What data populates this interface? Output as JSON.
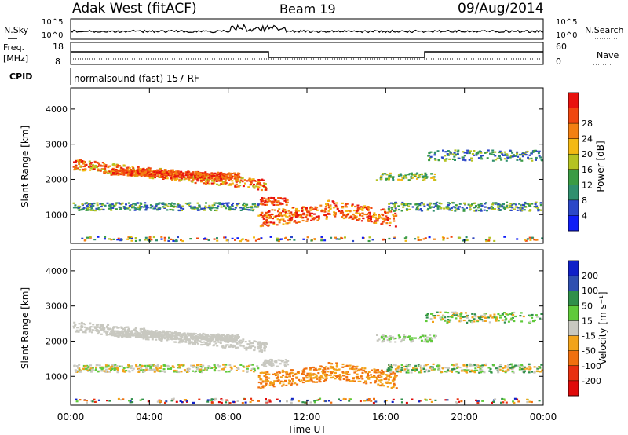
{
  "header": {
    "station": "Adak West (fitACF)",
    "beam": "Beam 19",
    "date": "09/Aug/2014"
  },
  "strip_labels": {
    "nsky": "N.Sky",
    "nsearch": "N.Search",
    "freq_line1": "Freq.",
    "freq_line2": "[MHz]",
    "nave": "Nave",
    "cpid": "CPID",
    "cpid_value": "normalsound (fast) 157 RF",
    "noise_left_top": "10^5",
    "noise_left_bottom": "10^0",
    "noise_right_top": "10^5",
    "noise_right_bottom": "10^0",
    "freq_top": "18",
    "freq_bottom": "8",
    "nave_top": "60",
    "nave_bottom": "0"
  },
  "chart_data": [
    {
      "type": "heatmap",
      "name": "power",
      "ylabel": "Slant Range [km]",
      "xlabel": "",
      "ylim": [
        180,
        4600
      ],
      "xlim": [
        0,
        24
      ],
      "yticks": [
        1000,
        2000,
        3000,
        4000
      ],
      "colorbar": {
        "label": "Power [dB]",
        "ticks": [
          "4",
          "8",
          "12",
          "16",
          "20",
          "24",
          "28"
        ],
        "colors": [
          "#0f1df7",
          "#2b47c8",
          "#2f8f6e",
          "#3a9b44",
          "#b5c322",
          "#f3b913",
          "#f38012",
          "#f0470f",
          "#e8120e"
        ]
      }
    },
    {
      "type": "heatmap",
      "name": "velocity",
      "ylabel": "Slant Range [km]",
      "xlabel": "Time UT",
      "ylim": [
        180,
        4600
      ],
      "xlim": [
        0,
        24
      ],
      "yticks": [
        1000,
        2000,
        3000,
        4000
      ],
      "xticks": [
        "00:00",
        "04:00",
        "08:00",
        "12:00",
        "16:00",
        "20:00",
        "00:00"
      ],
      "colorbar": {
        "label": "Velocity [m s⁻¹]",
        "ticks": [
          "200",
          "100",
          "50",
          "15",
          "-15",
          "-50",
          "-100",
          "-200"
        ],
        "colors": [
          "#1020c8",
          "#2f4fb0",
          "#2f8f4a",
          "#5fca3a",
          "#c8c8c0",
          "#f2a31a",
          "#f0700f",
          "#e83010",
          "#e00a0a"
        ]
      }
    }
  ]
}
